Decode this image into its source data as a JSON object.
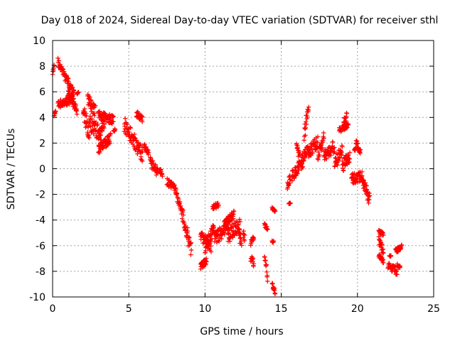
{
  "chart_data": {
    "type": "scatter",
    "title": "Day 018 of 2024, Sidereal Day-to-day VTEC variation (SDTVAR) for receiver sthl",
    "xlabel": "GPS time / hours",
    "ylabel": "SDTVAR / TECUs",
    "xlim": [
      0,
      25
    ],
    "ylim": [
      -10,
      10
    ],
    "xticks": [
      "0",
      "5",
      "10",
      "15",
      "20",
      "25"
    ],
    "yticks": [
      "-10",
      "-8",
      "-6",
      "-4",
      "-2",
      "0",
      "2",
      "4",
      "6",
      "8",
      "10"
    ],
    "grid": true,
    "marker": "+",
    "color": "#ff0000",
    "segments": [
      {
        "t0": 0.0,
        "t1": 0.1,
        "v0": 7.6,
        "v1": 7.9,
        "spread": 0.25
      },
      {
        "t0": 0.1,
        "t1": 0.2,
        "v0": 4.2,
        "v1": 4.4,
        "spread": 0.15
      },
      {
        "t0": 0.35,
        "t1": 1.4,
        "v0": 8.3,
        "v1": 5.8,
        "spread": 0.35
      },
      {
        "t0": 0.35,
        "t1": 1.4,
        "v0": 5.0,
        "v1": 5.4,
        "spread": 0.3
      },
      {
        "t0": 1.0,
        "t1": 1.6,
        "v0": 6.0,
        "v1": 4.5,
        "spread": 0.3
      },
      {
        "t0": 1.6,
        "t1": 1.7,
        "v0": 5.9,
        "v1": 5.9,
        "spread": 0.1
      },
      {
        "t0": 2.0,
        "t1": 2.4,
        "v0": 4.7,
        "v1": 2.6,
        "spread": 0.8
      },
      {
        "t0": 2.3,
        "t1": 2.8,
        "v0": 5.4,
        "v1": 4.5,
        "spread": 0.5
      },
      {
        "t0": 2.4,
        "t1": 3.2,
        "v0": 3.6,
        "v1": 2.6,
        "spread": 0.6
      },
      {
        "t0": 3.0,
        "t1": 4.0,
        "v0": 4.2,
        "v1": 3.8,
        "spread": 0.35
      },
      {
        "t0": 3.0,
        "t1": 3.8,
        "v0": 1.5,
        "v1": 2.4,
        "spread": 0.4
      },
      {
        "t0": 3.1,
        "t1": 3.4,
        "v0": 2.8,
        "v1": 3.6,
        "spread": 0.4
      },
      {
        "t0": 4.0,
        "t1": 4.1,
        "v0": 2.9,
        "v1": 3.1,
        "spread": 0.1
      },
      {
        "t0": 4.7,
        "t1": 5.9,
        "v0": 3.5,
        "v1": 1.0,
        "spread": 0.6
      },
      {
        "t0": 5.5,
        "t1": 5.9,
        "v0": 4.3,
        "v1": 3.8,
        "spread": 0.25
      },
      {
        "t0": 6.0,
        "t1": 6.3,
        "v0": 1.8,
        "v1": 1.2,
        "spread": 0.2
      },
      {
        "t0": 6.4,
        "t1": 6.9,
        "v0": 0.6,
        "v1": -0.3,
        "spread": 0.4
      },
      {
        "t0": 7.0,
        "t1": 7.2,
        "v0": -0.1,
        "v1": -0.4,
        "spread": 0.2
      },
      {
        "t0": 7.5,
        "t1": 8.1,
        "v0": -1.0,
        "v1": -1.6,
        "spread": 0.3
      },
      {
        "t0": 8.1,
        "t1": 8.5,
        "v0": -2.0,
        "v1": -3.5,
        "spread": 0.4
      },
      {
        "t0": 8.5,
        "t1": 9.1,
        "v0": -3.5,
        "v1": -6.4,
        "spread": 0.6
      },
      {
        "t0": 9.7,
        "t1": 10.1,
        "v0": -7.6,
        "v1": -7.2,
        "spread": 0.25
      },
      {
        "t0": 9.7,
        "t1": 10.4,
        "v0": -5.4,
        "v1": -6.0,
        "spread": 0.5
      },
      {
        "t0": 10.0,
        "t1": 10.6,
        "v0": -6.2,
        "v1": -4.6,
        "spread": 0.5
      },
      {
        "t0": 10.5,
        "t1": 10.9,
        "v0": -3.0,
        "v1": -2.8,
        "spread": 0.2
      },
      {
        "t0": 10.6,
        "t1": 11.5,
        "v0": -5.5,
        "v1": -4.4,
        "spread": 0.6
      },
      {
        "t0": 11.3,
        "t1": 11.9,
        "v0": -4.4,
        "v1": -3.4,
        "spread": 0.4
      },
      {
        "t0": 11.5,
        "t1": 12.3,
        "v0": -5.2,
        "v1": -4.4,
        "spread": 0.6
      },
      {
        "t0": 12.2,
        "t1": 12.4,
        "v0": -4.9,
        "v1": -5.9,
        "spread": 0.5
      },
      {
        "t0": 12.5,
        "t1": 12.6,
        "v0": -5.0,
        "v1": -5.4,
        "spread": 0.3
      },
      {
        "t0": 13.0,
        "t1": 13.2,
        "v0": -7.0,
        "v1": -7.4,
        "spread": 0.3
      },
      {
        "t0": 13.0,
        "t1": 13.2,
        "v0": -5.8,
        "v1": -5.4,
        "spread": 0.2
      },
      {
        "t0": 13.9,
        "t1": 14.1,
        "v0": -4.4,
        "v1": -4.6,
        "spread": 0.15
      },
      {
        "t0": 13.9,
        "t1": 14.1,
        "v0": -6.6,
        "v1": -8.4,
        "spread": 0.4
      },
      {
        "t0": 14.4,
        "t1": 14.6,
        "v0": -3.1,
        "v1": -3.3,
        "spread": 0.1
      },
      {
        "t0": 14.4,
        "t1": 14.6,
        "v0": -9.0,
        "v1": -9.6,
        "spread": 0.2
      },
      {
        "t0": 14.4,
        "t1": 14.5,
        "v0": -5.7,
        "v1": -5.7,
        "spread": 0.1
      },
      {
        "t0": 15.4,
        "t1": 15.6,
        "v0": -1.3,
        "v1": -0.7,
        "spread": 0.3
      },
      {
        "t0": 15.5,
        "t1": 15.6,
        "v0": -2.7,
        "v1": -2.7,
        "spread": 0.05
      },
      {
        "t0": 15.7,
        "t1": 16.2,
        "v0": -0.6,
        "v1": 0.2,
        "spread": 0.4
      },
      {
        "t0": 16.0,
        "t1": 16.4,
        "v0": 1.6,
        "v1": 0.2,
        "spread": 0.5
      },
      {
        "t0": 16.3,
        "t1": 16.8,
        "v0": 0.6,
        "v1": 1.6,
        "spread": 0.4
      },
      {
        "t0": 16.5,
        "t1": 16.8,
        "v0": 2.5,
        "v1": 5.0,
        "spread": 0.6
      },
      {
        "t0": 16.8,
        "t1": 17.4,
        "v0": 1.2,
        "v1": 2.2,
        "spread": 0.5
      },
      {
        "t0": 17.4,
        "t1": 17.8,
        "v0": 0.9,
        "v1": 2.4,
        "spread": 0.5
      },
      {
        "t0": 17.8,
        "t1": 18.5,
        "v0": 1.0,
        "v1": 1.8,
        "spread": 0.5
      },
      {
        "t0": 18.5,
        "t1": 19.0,
        "v0": 0.4,
        "v1": 1.4,
        "spread": 0.5
      },
      {
        "t0": 18.8,
        "t1": 19.4,
        "v0": 3.0,
        "v1": 3.4,
        "spread": 0.2
      },
      {
        "t0": 19.1,
        "t1": 19.3,
        "v0": 3.6,
        "v1": 4.1,
        "spread": 0.3
      },
      {
        "t0": 19.0,
        "t1": 19.5,
        "v0": 0.2,
        "v1": 1.0,
        "spread": 0.5
      },
      {
        "t0": 19.6,
        "t1": 20.3,
        "v0": -0.8,
        "v1": -0.6,
        "spread": 0.4
      },
      {
        "t0": 19.8,
        "t1": 19.9,
        "v0": 1.4,
        "v1": 1.6,
        "spread": 0.1
      },
      {
        "t0": 19.9,
        "t1": 20.2,
        "v0": 2.0,
        "v1": 1.4,
        "spread": 0.3
      },
      {
        "t0": 20.3,
        "t1": 20.8,
        "v0": -0.8,
        "v1": -2.4,
        "spread": 0.5
      },
      {
        "t0": 21.4,
        "t1": 21.7,
        "v0": -4.9,
        "v1": -5.1,
        "spread": 0.15
      },
      {
        "t0": 21.4,
        "t1": 21.7,
        "v0": -5.6,
        "v1": -6.4,
        "spread": 0.3
      },
      {
        "t0": 21.4,
        "t1": 21.7,
        "v0": -6.8,
        "v1": -7.2,
        "spread": 0.2
      },
      {
        "t0": 22.0,
        "t1": 22.6,
        "v0": -7.6,
        "v1": -8.0,
        "spread": 0.3
      },
      {
        "t0": 22.1,
        "t1": 22.2,
        "v0": -6.8,
        "v1": -6.8,
        "spread": 0.05
      },
      {
        "t0": 22.5,
        "t1": 22.9,
        "v0": -6.4,
        "v1": -6.1,
        "spread": 0.2
      },
      {
        "t0": 22.6,
        "t1": 22.8,
        "v0": -7.5,
        "v1": -7.7,
        "spread": 0.1
      }
    ]
  }
}
